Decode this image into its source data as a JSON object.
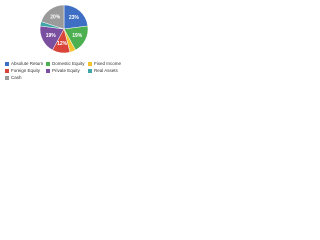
{
  "chart_data": {
    "type": "pie",
    "categories": [
      "Absolute Return",
      "Domestic Equity",
      "Fixed Income",
      "Foreign Equity",
      "Private Equity",
      "Real Assets",
      "Cash"
    ],
    "values": [
      23,
      19,
      4,
      12,
      19,
      3,
      20
    ],
    "value_labels": [
      "23%",
      "19%",
      null,
      "12%",
      "19%",
      null,
      "20%"
    ],
    "colors": [
      "#3f6fc4",
      "#4caf50",
      "#f2c22e",
      "#d9443a",
      "#7b4fa0",
      "#3fa7a8",
      "#9a9a9a"
    ]
  }
}
